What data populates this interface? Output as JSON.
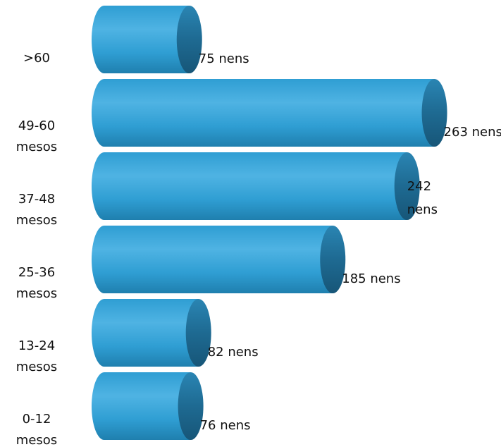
{
  "chart_data": {
    "type": "bar",
    "orientation": "horizontal",
    "style": "3d-cylinder",
    "categories": [
      ">60",
      "49-60 mesos",
      "37-48 mesos",
      "25-36 mesos",
      "13-24 mesos",
      "0-12 mesos"
    ],
    "category_lines": [
      [
        ">60"
      ],
      [
        "49-60",
        "mesos"
      ],
      [
        "37-48",
        "mesos"
      ],
      [
        "25-36",
        "mesos"
      ],
      [
        "13-24",
        "mesos"
      ],
      [
        "0-12",
        "mesos"
      ]
    ],
    "values": [
      75,
      263,
      242,
      185,
      82,
      76
    ],
    "data_labels": [
      "75 nens",
      "263 nens",
      "242 nens",
      "185 nens",
      "82 nens",
      "76 nens"
    ],
    "data_label_lines": [
      [
        "75 nens"
      ],
      [
        "263 nens"
      ],
      [
        "242",
        "nens"
      ],
      [
        "185 nens"
      ],
      [
        "82 nens"
      ],
      [
        "76 nens"
      ]
    ],
    "title": "",
    "xlabel": "",
    "ylabel": "",
    "xlim": [
      0,
      263
    ],
    "grid": false,
    "legend": "none",
    "colors": {
      "bar_light": "#4fb3e3",
      "bar_mid": "#2f9ed3",
      "bar_dark": "#1f7fae",
      "bar_cap": "#1e6a92",
      "text": "#111111"
    }
  }
}
